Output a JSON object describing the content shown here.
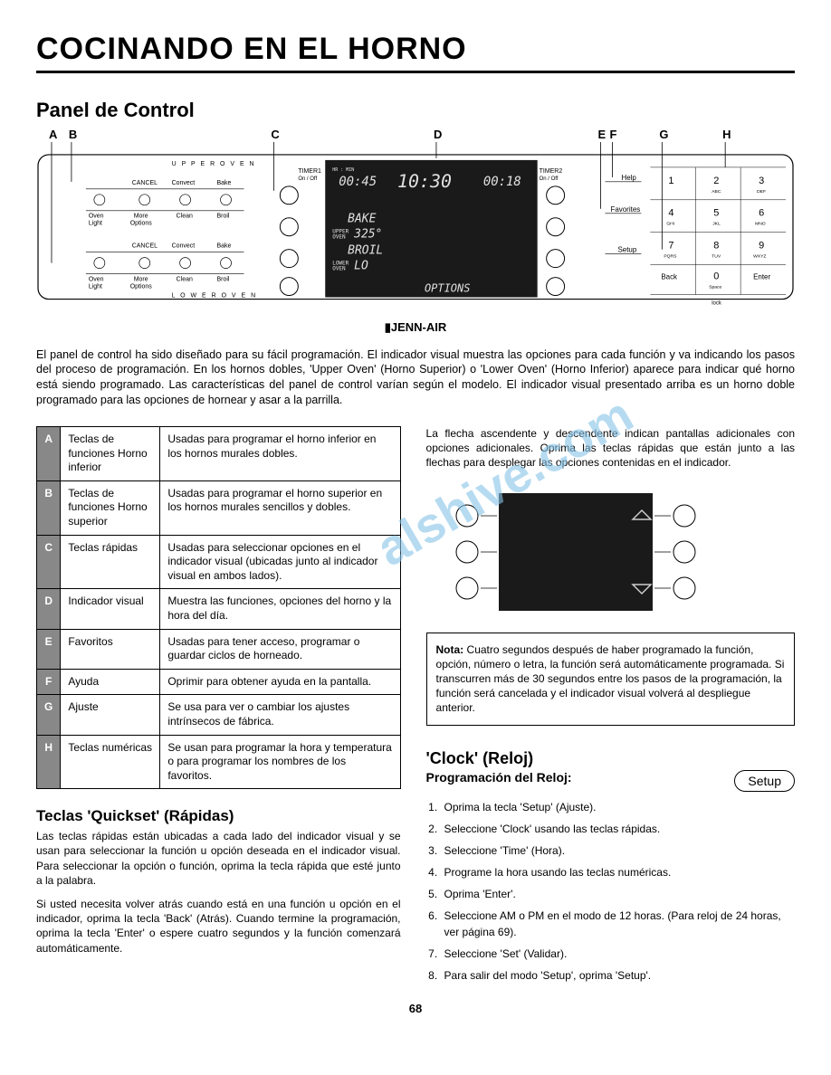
{
  "watermark": "alshive.com",
  "main_title": "COCINANDO EN EL HORNO",
  "section_title": "Panel de Control",
  "labels": {
    "A": "A",
    "B": "B",
    "C": "C",
    "D": "D",
    "E": "E",
    "F": "F",
    "G": "G",
    "H": "H"
  },
  "panel": {
    "upper_oven": "U P P E R  O V E N",
    "lower_oven": "L O W E R  O V E N",
    "row1": [
      "Oven Light",
      "CANCEL",
      "Convect",
      "Bake"
    ],
    "row2": [
      "",
      "More Options",
      "Clean",
      "Broil"
    ],
    "timer1": "TIMER1",
    "timer2": "TIMER2",
    "onoff": "On / Off",
    "display_top": [
      "00:45",
      "10:30",
      "00:18"
    ],
    "display_lines": [
      "BAKE",
      "UPPER OVEN 325°",
      "BROIL",
      "LOWER OVEN LO"
    ],
    "display_bottom": "OPTIONS",
    "side_labels": [
      "Help",
      "Favorites",
      "Setup"
    ],
    "keypad": [
      [
        "1",
        ""
      ],
      [
        "2",
        "ABC"
      ],
      [
        "3",
        "DEF"
      ],
      [
        "4",
        "GHI"
      ],
      [
        "5",
        "JKL"
      ],
      [
        "6",
        "MNO"
      ],
      [
        "7",
        "PQRS"
      ],
      [
        "8",
        "TUV"
      ],
      [
        "9",
        "WXYZ"
      ],
      [
        "Back",
        ""
      ],
      [
        "0",
        "Space"
      ],
      [
        "Enter",
        ""
      ]
    ],
    "lock": "lock"
  },
  "brand": "▮JENN-AIR",
  "intro": "El panel de control ha sido diseñado para su fácil programación. El indicador visual muestra las opciones para cada función y va indicando los pasos del proceso de programación. En los hornos dobles, 'Upper Oven' (Horno Superior) o 'Lower Oven' (Horno Inferior) aparece para indicar qué horno está siendo programado. Las características del panel de control varían según el modelo. El indicador visual presentado arriba es un horno doble programado para las opciones de hornear y asar a la parrilla.",
  "table_rows": [
    {
      "k": "A",
      "l": "Teclas de funciones Horno inferior",
      "d": "Usadas para programar el horno inferior en los hornos murales dobles."
    },
    {
      "k": "B",
      "l": "Teclas de funciones Horno superior",
      "d": "Usadas para programar el horno superior en los hornos murales sencillos y dobles."
    },
    {
      "k": "C",
      "l": "Teclas rápidas",
      "d": "Usadas para seleccionar opciones en el indicador visual (ubicadas junto al indicador visual en ambos lados)."
    },
    {
      "k": "D",
      "l": "Indicador visual",
      "d": "Muestra las funciones, opciones del horno y la hora del día."
    },
    {
      "k": "E",
      "l": "Favoritos",
      "d": "Usadas para tener acceso, programar o guardar ciclos de horneado."
    },
    {
      "k": "F",
      "l": "Ayuda",
      "d": "Oprimir para obtener ayuda en la pantalla."
    },
    {
      "k": "G",
      "l": "Ajuste",
      "d": "Se usa para ver o cambiar los ajustes intrínsecos de fábrica."
    },
    {
      "k": "H",
      "l": "Teclas numéricas",
      "d": "Se usan para programar la hora y temperatura o para programar los nombres de los favoritos."
    }
  ],
  "quickset": {
    "title": "Teclas 'Quickset' (Rápidas)",
    "p1": "Las teclas rápidas están ubicadas a cada lado del indicador visual y se usan para seleccionar la función u opción deseada en el indicador visual. Para seleccionar la opción o función, oprima la tecla rápida que esté junto a la palabra.",
    "p2": "Si usted necesita volver atrás cuando está en una función u opción en el indicador, oprima la tecla 'Back' (Atrás). Cuando termine la programación, oprima la tecla 'Enter' o espere cuatro segundos y la función comenzará automáticamente."
  },
  "arrows_intro": "La flecha ascendente y descendente indican pantallas adicionales con opciones adicionales. Oprima las teclas rápidas que están junto a las flechas para desplegar las opciones contenidas en el indicador.",
  "note": {
    "bold": "Nota:",
    "text": " Cuatro segundos después de haber programado la función, opción, número o letra, la función será automáticamente programada. Si transcurren más de 30 segundos entre los pasos de la programación, la función será cancelada y el indicador visual volverá al despliegue anterior."
  },
  "clock": {
    "title": "'Clock' (Reloj)",
    "sub": "Programación del Reloj:",
    "btn": "Setup",
    "steps": [
      "Oprima la tecla 'Setup' (Ajuste).",
      "Seleccione 'Clock' usando las teclas rápidas.",
      "Seleccione 'Time' (Hora).",
      "Programe la hora usando las teclas numéricas.",
      "Oprima 'Enter'.",
      "Seleccione AM o PM en el modo de 12 horas.  (Para reloj de 24 horas, ver página 69).",
      "Seleccione 'Set' (Validar).",
      "Para salir del modo 'Setup', oprima 'Setup'."
    ]
  },
  "page_num": "68"
}
